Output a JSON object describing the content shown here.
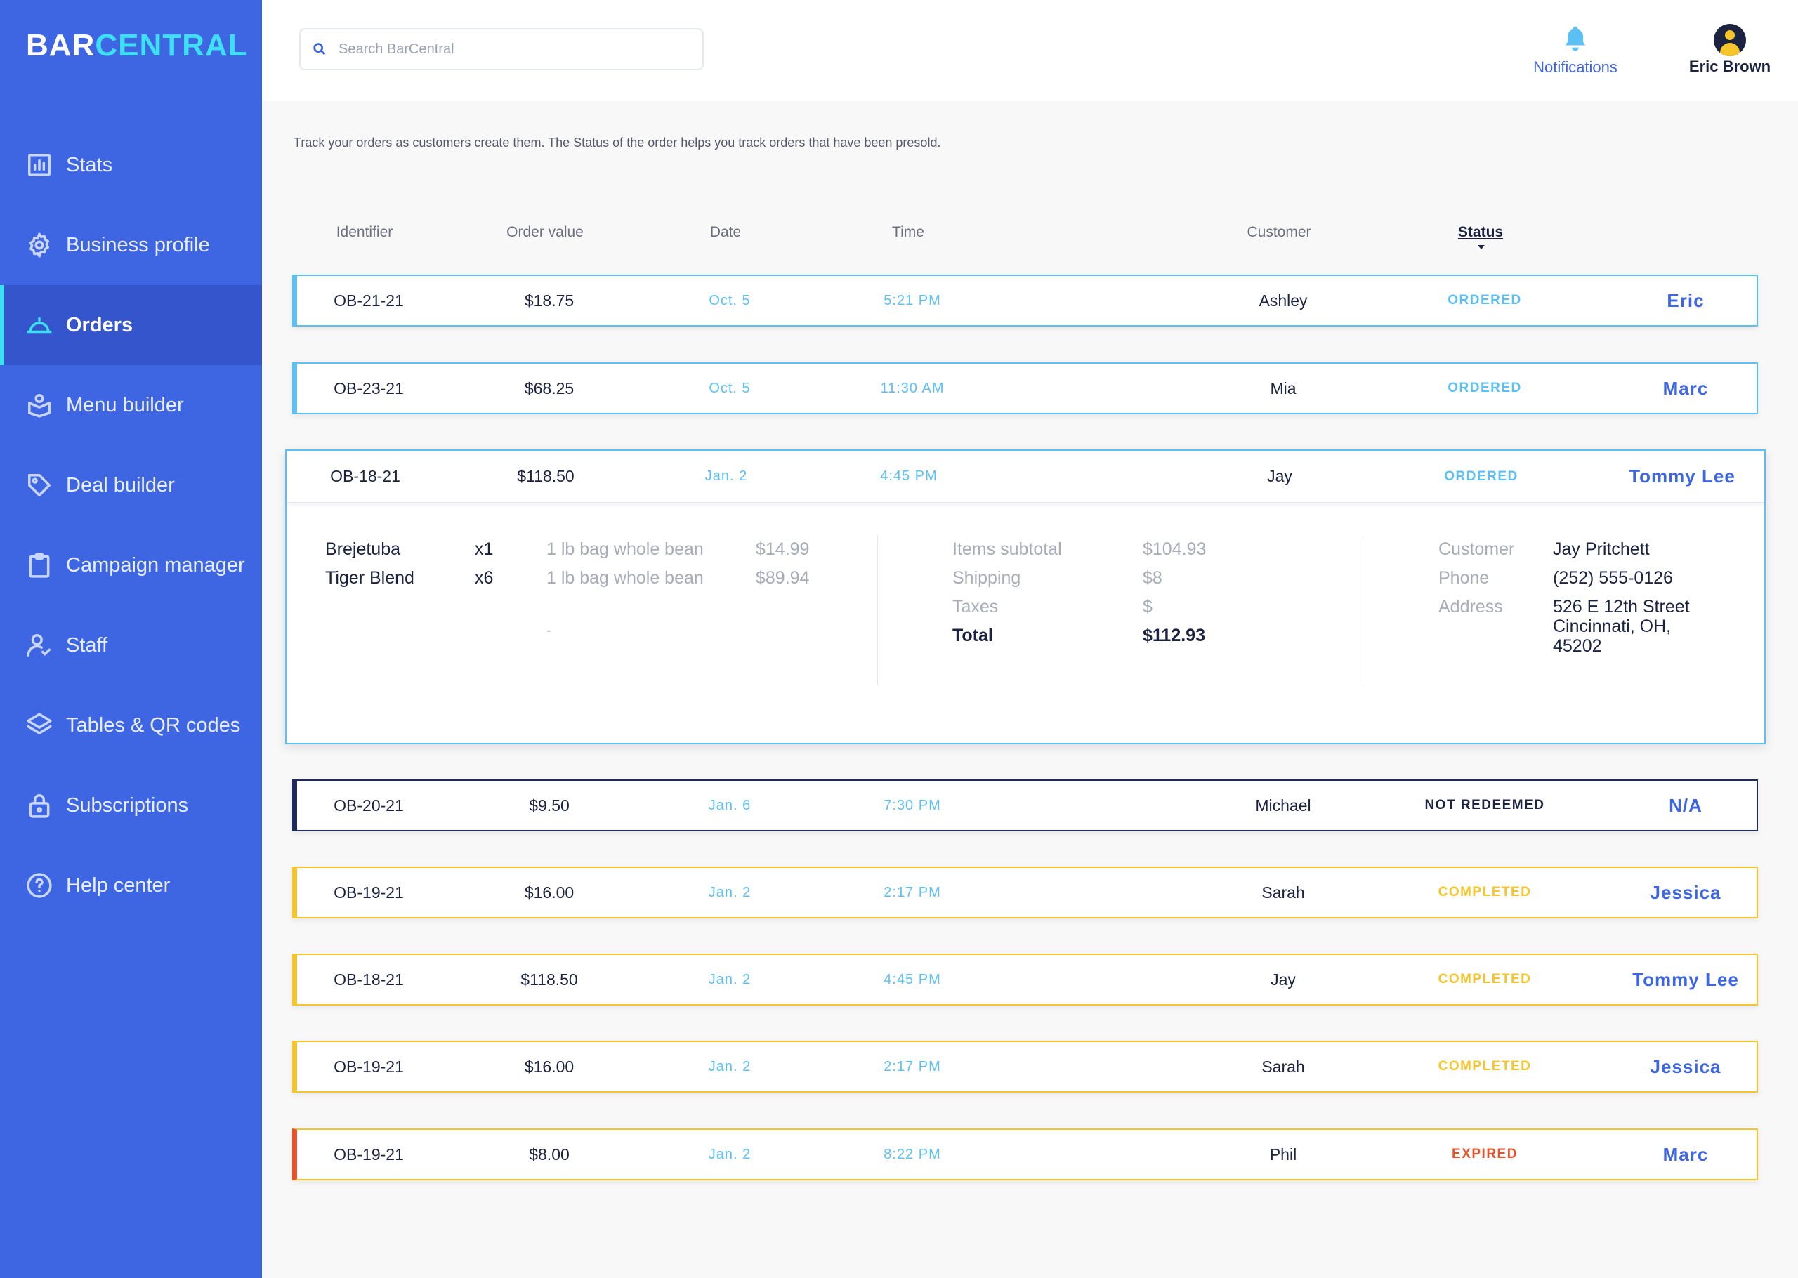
{
  "brand": {
    "part1": "BAR",
    "part2": "CENTRAL"
  },
  "sidebar": {
    "items": [
      {
        "label": "Stats",
        "icon": "chart-icon"
      },
      {
        "label": "Business profile",
        "icon": "gear-icon"
      },
      {
        "label": "Orders",
        "icon": "cloche-icon",
        "active": true
      },
      {
        "label": "Menu builder",
        "icon": "menu-box-icon"
      },
      {
        "label": "Deal builder",
        "icon": "tag-icon"
      },
      {
        "label": "Campaign manager",
        "icon": "clipboard-icon"
      },
      {
        "label": "Staff",
        "icon": "user-check-icon"
      },
      {
        "label": "Tables & QR codes",
        "icon": "layers-icon"
      },
      {
        "label": "Subscriptions",
        "icon": "lock-icon"
      },
      {
        "label": "Help center",
        "icon": "help-circle-icon"
      }
    ]
  },
  "header": {
    "search_placeholder": "Search BarCentral",
    "notifications_label": "Notifications",
    "user_name": "Eric Brown"
  },
  "intro_text": "Track your orders as customers create them. The Status of the order helps you track orders that have been presold.",
  "columns": {
    "identifier": "Identifier",
    "order_value": "Order value",
    "date": "Date",
    "time": "Time",
    "customer": "Customer",
    "status": "Status"
  },
  "orders": [
    {
      "id": "OB-21-21",
      "value": "$18.75",
      "date": "Oct. 5",
      "time": "5:21 PM",
      "customer": "Ashley",
      "status": "ORDERED",
      "staff": "Eric"
    },
    {
      "id": "OB-23-21",
      "value": "$68.25",
      "date": "Oct. 5",
      "time": "11:30 AM",
      "customer": "Mia",
      "status": "ORDERED",
      "staff": "Marc"
    },
    {
      "id": "OB-18-21",
      "value": "$118.50",
      "date": "Jan. 2",
      "time": "4:45 PM",
      "customer": "Jay",
      "status": "ORDERED",
      "staff": "Tommy Lee"
    },
    {
      "id": "OB-20-21",
      "value": "$9.50",
      "date": "Jan. 6",
      "time": "7:30 PM",
      "customer": "Michael",
      "status": "NOT REDEEMED",
      "staff": "N/A"
    },
    {
      "id": "OB-19-21",
      "value": "$16.00",
      "date": "Jan. 2",
      "time": "2:17 PM",
      "customer": "Sarah",
      "status": "COMPLETED",
      "staff": "Jessica"
    },
    {
      "id": "OB-18-21",
      "value": "$118.50",
      "date": "Jan. 2",
      "time": "4:45 PM",
      "customer": "Jay",
      "status": "COMPLETED",
      "staff": "Tommy Lee"
    },
    {
      "id": "OB-19-21",
      "value": "$16.00",
      "date": "Jan. 2",
      "time": "2:17 PM",
      "customer": "Sarah",
      "status": "COMPLETED",
      "staff": "Jessica"
    },
    {
      "id": "OB-19-21",
      "value": "$8.00",
      "date": "Jan. 2",
      "time": "8:22 PM",
      "customer": "Phil",
      "status": "EXPIRED",
      "staff": "Marc"
    }
  ],
  "expanded_detail": {
    "items": [
      {
        "name": "Brejetuba",
        "qty": "x1",
        "desc": "1 lb bag whole bean",
        "price": "$14.99"
      },
      {
        "name": "Tiger Blend",
        "qty": "x6",
        "desc": "1 lb bag whole bean",
        "price": "$89.94"
      }
    ],
    "placeholder_dash": "-",
    "summary": {
      "subtotal_label": "Items subtotal",
      "subtotal_value": "$104.93",
      "shipping_label": "Shipping",
      "shipping_value": "$8",
      "taxes_label": "Taxes",
      "taxes_value": "$",
      "total_label": "Total",
      "total_value": "$112.93"
    },
    "customer": {
      "customer_label": "Customer",
      "customer_value": "Jay Pritchett",
      "phone_label": "Phone",
      "phone_value": "(252) 555-0126",
      "address_label": "Address",
      "address_line1": "526 E 12th Street",
      "address_line2": "Cincinnati, OH,",
      "address_line3": "45202"
    }
  },
  "colors": {
    "sidebar": "#3f66e2",
    "accent_cyan": "#3ee0f5",
    "ordered": "#5cc0f5",
    "completed": "#f5c52b",
    "expired": "#e9522a",
    "not_redeemed": "#1c2a5c"
  }
}
